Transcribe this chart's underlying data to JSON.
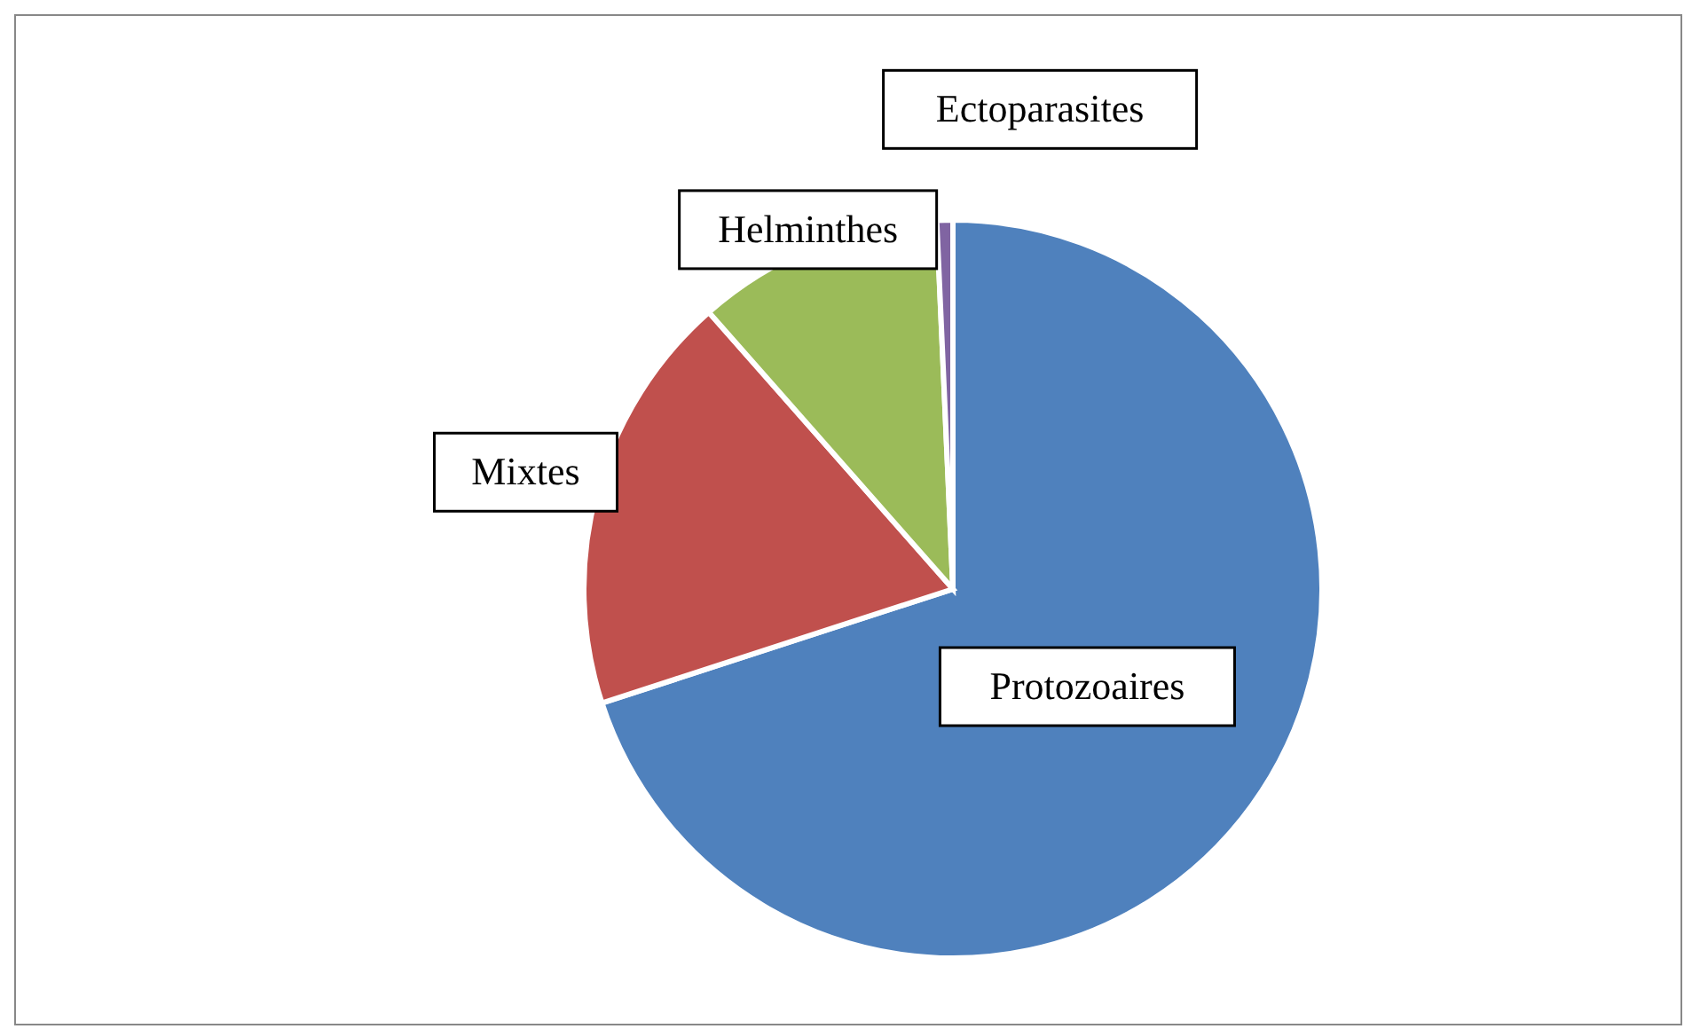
{
  "chart_data": {
    "type": "pie",
    "categories": [
      "Protozoaires",
      "Mixtes",
      "Helminthes",
      "Ectoparasites"
    ],
    "values": [
      70,
      18.5,
      10.8,
      0.7
    ],
    "colors": [
      "#4f81bd",
      "#c0504d",
      "#9bbb59",
      "#8064a2"
    ],
    "legend": false
  }
}
